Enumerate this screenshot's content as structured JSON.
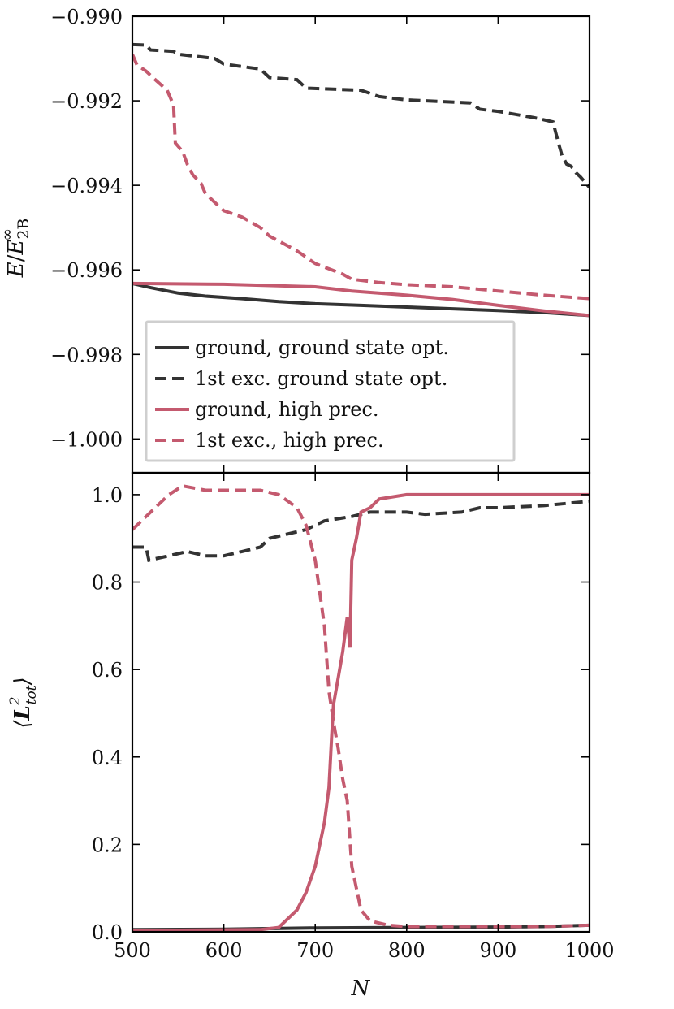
{
  "colors": {
    "black": "#333333",
    "rose": "#c45a6f",
    "frame": "#000000",
    "legend_border": "#cfcfcf"
  },
  "chart_data": [
    {
      "type": "line",
      "panel": "top",
      "ylabel_parts": {
        "E": "E",
        "slash": "/",
        "E2": "E",
        "sub": "2B",
        "sup": "∞"
      },
      "xlim": [
        500,
        1000
      ],
      "ylim": [
        -1.0008,
        -0.99
      ],
      "yticks": [
        -0.99,
        -0.992,
        -0.994,
        -0.996,
        -0.998,
        -1.0
      ],
      "ytick_labels": [
        "−0.990",
        "−0.992",
        "−0.994",
        "−0.996",
        "−0.998",
        "−1.000"
      ],
      "legend_placement": "lower-left",
      "series": [
        {
          "name": "ground, ground state opt.",
          "color": "black",
          "dash": "solid",
          "points": [
            [
              500,
              -0.99632
            ],
            [
              520,
              -0.99642
            ],
            [
              550,
              -0.99655
            ],
            [
              580,
              -0.99662
            ],
            [
              620,
              -0.99668
            ],
            [
              660,
              -0.99675
            ],
            [
              700,
              -0.9968
            ],
            [
              750,
              -0.99684
            ],
            [
              800,
              -0.99688
            ],
            [
              850,
              -0.99692
            ],
            [
              900,
              -0.99696
            ],
            [
              950,
              -0.99701
            ],
            [
              1000,
              -0.99708
            ]
          ]
        },
        {
          "name": "1st exc. ground state opt.",
          "color": "black",
          "dash": "dashed",
          "points": [
            [
              500,
              -0.99067
            ],
            [
              515,
              -0.99068
            ],
            [
              520,
              -0.9908
            ],
            [
              545,
              -0.99083
            ],
            [
              550,
              -0.9909
            ],
            [
              590,
              -0.991
            ],
            [
              600,
              -0.99113
            ],
            [
              640,
              -0.99125
            ],
            [
              650,
              -0.99145
            ],
            [
              680,
              -0.9915
            ],
            [
              690,
              -0.9917
            ],
            [
              750,
              -0.99175
            ],
            [
              770,
              -0.9919
            ],
            [
              800,
              -0.99198
            ],
            [
              870,
              -0.99205
            ],
            [
              880,
              -0.9922
            ],
            [
              900,
              -0.99225
            ],
            [
              940,
              -0.9924
            ],
            [
              960,
              -0.9925
            ],
            [
              966,
              -0.993
            ],
            [
              970,
              -0.9933
            ],
            [
              975,
              -0.9935
            ],
            [
              980,
              -0.99355
            ],
            [
              985,
              -0.9937
            ],
            [
              990,
              -0.9938
            ],
            [
              1000,
              -0.99405
            ]
          ]
        },
        {
          "name": "ground, high prec.",
          "color": "rose",
          "dash": "solid",
          "points": [
            [
              500,
              -0.99632
            ],
            [
              600,
              -0.99634
            ],
            [
              700,
              -0.9964
            ],
            [
              740,
              -0.9965
            ],
            [
              800,
              -0.9966
            ],
            [
              850,
              -0.9967
            ],
            [
              900,
              -0.99684
            ],
            [
              950,
              -0.99697
            ],
            [
              1000,
              -0.99708
            ]
          ]
        },
        {
          "name": "1st exc., high prec.",
          "color": "rose",
          "dash": "dashed",
          "points": [
            [
              500,
              -0.9909
            ],
            [
              505,
              -0.99115
            ],
            [
              515,
              -0.9913
            ],
            [
              525,
              -0.9915
            ],
            [
              538,
              -0.99175
            ],
            [
              545,
              -0.9921
            ],
            [
              547,
              -0.993
            ],
            [
              555,
              -0.9932
            ],
            [
              560,
              -0.9935
            ],
            [
              566,
              -0.99375
            ],
            [
              575,
              -0.99395
            ],
            [
              580,
              -0.9942
            ],
            [
              590,
              -0.9944
            ],
            [
              600,
              -0.9946
            ],
            [
              620,
              -0.99475
            ],
            [
              640,
              -0.995
            ],
            [
              650,
              -0.9952
            ],
            [
              680,
              -0.99555
            ],
            [
              700,
              -0.99585
            ],
            [
              730,
              -0.9961
            ],
            [
              740,
              -0.99622
            ],
            [
              770,
              -0.9963
            ],
            [
              800,
              -0.99635
            ],
            [
              850,
              -0.9964
            ],
            [
              900,
              -0.9965
            ],
            [
              950,
              -0.9966
            ],
            [
              1000,
              -0.99668
            ]
          ]
        }
      ]
    },
    {
      "type": "line",
      "panel": "bottom",
      "ylabel_parts": {
        "lang": "⟨",
        "L": "L",
        "sup": "2",
        "sub": "tot",
        "rang": "⟩"
      },
      "xlabel": "N",
      "xlim": [
        500,
        1000
      ],
      "ylim": [
        0.0,
        1.05
      ],
      "xticks": [
        500,
        600,
        700,
        800,
        900,
        1000
      ],
      "xtick_labels": [
        "500",
        "600",
        "700",
        "800",
        "900",
        "1000"
      ],
      "yticks": [
        0.0,
        0.2,
        0.4,
        0.6,
        0.8,
        1.0
      ],
      "ytick_labels": [
        "0.0",
        "0.2",
        "0.4",
        "0.6",
        "0.8",
        "1.0"
      ],
      "series": [
        {
          "name": "ground, ground state opt.",
          "color": "black",
          "dash": "solid",
          "points": [
            [
              500,
              0.005
            ],
            [
              600,
              0.006
            ],
            [
              700,
              0.009
            ],
            [
              800,
              0.01
            ],
            [
              900,
              0.011
            ],
            [
              950,
              0.012
            ],
            [
              1000,
              0.015
            ]
          ]
        },
        {
          "name": "1st exc. ground state opt.",
          "color": "black",
          "dash": "dashed",
          "points": [
            [
              500,
              0.88
            ],
            [
              515,
              0.88
            ],
            [
              518,
              0.85
            ],
            [
              540,
              0.86
            ],
            [
              560,
              0.87
            ],
            [
              580,
              0.86
            ],
            [
              600,
              0.86
            ],
            [
              620,
              0.87
            ],
            [
              640,
              0.88
            ],
            [
              650,
              0.9
            ],
            [
              670,
              0.91
            ],
            [
              690,
              0.92
            ],
            [
              710,
              0.94
            ],
            [
              740,
              0.95
            ],
            [
              760,
              0.96
            ],
            [
              800,
              0.96
            ],
            [
              820,
              0.955
            ],
            [
              860,
              0.96
            ],
            [
              880,
              0.97
            ],
            [
              900,
              0.97
            ],
            [
              950,
              0.975
            ],
            [
              1000,
              0.985
            ]
          ]
        },
        {
          "name": "ground, high prec.",
          "color": "rose",
          "dash": "solid",
          "points": [
            [
              500,
              0.003
            ],
            [
              640,
              0.005
            ],
            [
              660,
              0.01
            ],
            [
              670,
              0.03
            ],
            [
              680,
              0.05
            ],
            [
              690,
              0.09
            ],
            [
              700,
              0.15
            ],
            [
              710,
              0.25
            ],
            [
              715,
              0.33
            ],
            [
              718,
              0.45
            ],
            [
              720,
              0.52
            ],
            [
              725,
              0.58
            ],
            [
              730,
              0.64
            ],
            [
              735,
              0.72
            ],
            [
              738,
              0.65
            ],
            [
              740,
              0.85
            ],
            [
              745,
              0.9
            ],
            [
              750,
              0.96
            ],
            [
              760,
              0.97
            ],
            [
              770,
              0.99
            ],
            [
              800,
              1.0
            ],
            [
              850,
              1.0
            ],
            [
              900,
              1.0
            ],
            [
              950,
              1.0
            ],
            [
              1000,
              1.0
            ]
          ]
        },
        {
          "name": "1st exc., high prec.",
          "color": "rose",
          "dash": "dashed",
          "points": [
            [
              500,
              0.92
            ],
            [
              520,
              0.96
            ],
            [
              540,
              1.0
            ],
            [
              555,
              1.02
            ],
            [
              580,
              1.01
            ],
            [
              600,
              1.01
            ],
            [
              640,
              1.01
            ],
            [
              660,
              1.0
            ],
            [
              680,
              0.97
            ],
            [
              690,
              0.93
            ],
            [
              700,
              0.85
            ],
            [
              710,
              0.7
            ],
            [
              715,
              0.55
            ],
            [
              720,
              0.48
            ],
            [
              725,
              0.42
            ],
            [
              730,
              0.35
            ],
            [
              735,
              0.3
            ],
            [
              740,
              0.15
            ],
            [
              750,
              0.05
            ],
            [
              760,
              0.025
            ],
            [
              780,
              0.015
            ],
            [
              800,
              0.012
            ],
            [
              850,
              0.012
            ],
            [
              900,
              0.012
            ],
            [
              950,
              0.012
            ],
            [
              1000,
              0.015
            ]
          ]
        }
      ]
    }
  ]
}
